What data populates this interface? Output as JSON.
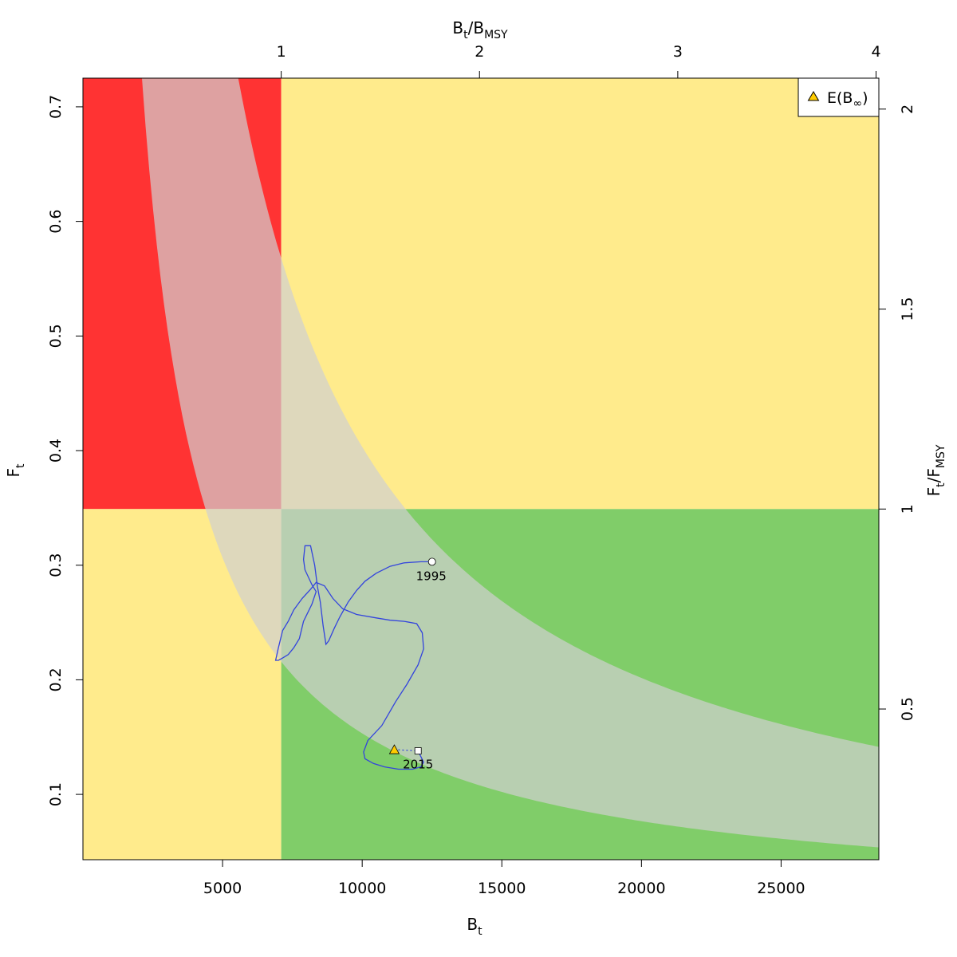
{
  "chart_data": {
    "type": "line",
    "xlabel": {
      "main": "B",
      "sub": "t"
    },
    "ylabel": {
      "main": "F",
      "sub": "t"
    },
    "x2label": {
      "main": "B",
      "sub1": "t",
      "mid": "/B",
      "sub2": "MSY"
    },
    "y2label": {
      "main": "F",
      "sub1": "t",
      "mid": "/F",
      "sub2": "MSY"
    },
    "bmsy": 7100,
    "fmsy": 0.349,
    "xlim": [
      0,
      28500
    ],
    "ylim": [
      0.043,
      0.725
    ],
    "x_ticks": [
      {
        "value": 5000,
        "label": "5000"
      },
      {
        "value": 10000,
        "label": "10000"
      },
      {
        "value": 15000,
        "label": "15000"
      },
      {
        "value": 20000,
        "label": "20000"
      },
      {
        "value": 25000,
        "label": "25000"
      }
    ],
    "y_ticks": [
      {
        "value": 0.1,
        "label": "0.1"
      },
      {
        "value": 0.2,
        "label": "0.2"
      },
      {
        "value": 0.3,
        "label": "0.3"
      },
      {
        "value": 0.4,
        "label": "0.4"
      },
      {
        "value": 0.5,
        "label": "0.5"
      },
      {
        "value": 0.6,
        "label": "0.6"
      },
      {
        "value": 0.7,
        "label": "0.7"
      }
    ],
    "x2_ticks": [
      {
        "value": 1,
        "label": "1"
      },
      {
        "value": 2,
        "label": "2"
      },
      {
        "value": 3,
        "label": "3"
      },
      {
        "value": 4,
        "label": "4"
      }
    ],
    "y2_ticks": [
      {
        "value": 0.5,
        "label": "0.5"
      },
      {
        "value": 1,
        "label": "1"
      },
      {
        "value": 1.5,
        "label": "1.5"
      },
      {
        "value": 2,
        "label": "2"
      }
    ],
    "zone_colors": {
      "red": "#ff3333",
      "yellow": "#ffeb8c",
      "green": "#80cd69",
      "msy_band": "#d0d0d0",
      "trajectory": "#3344dd",
      "e_binf": "#ffcc00"
    },
    "msy_band": {
      "lower_product": 1532,
      "upper_product": 4032
    },
    "trajectory": [
      [
        12500,
        0.303
      ],
      [
        12100,
        0.303
      ],
      [
        11500,
        0.302
      ],
      [
        11000,
        0.299
      ],
      [
        10500,
        0.293
      ],
      [
        10100,
        0.286
      ],
      [
        9800,
        0.278
      ],
      [
        9500,
        0.268
      ],
      [
        9200,
        0.255
      ],
      [
        9000,
        0.245
      ],
      [
        8800,
        0.234
      ],
      [
        8700,
        0.231
      ],
      [
        8600,
        0.247
      ],
      [
        8500,
        0.268
      ],
      [
        8400,
        0.281
      ],
      [
        8300,
        0.3
      ],
      [
        8150,
        0.317
      ],
      [
        7950,
        0.317
      ],
      [
        7900,
        0.305
      ],
      [
        7950,
        0.296
      ],
      [
        8200,
        0.283
      ],
      [
        8350,
        0.277
      ],
      [
        8200,
        0.266
      ],
      [
        7900,
        0.251
      ],
      [
        7750,
        0.236
      ],
      [
        7550,
        0.228
      ],
      [
        7350,
        0.222
      ],
      [
        7150,
        0.219
      ],
      [
        7000,
        0.217
      ],
      [
        6900,
        0.217
      ],
      [
        7000,
        0.228
      ],
      [
        7150,
        0.243
      ],
      [
        7350,
        0.251
      ],
      [
        7550,
        0.261
      ],
      [
        7850,
        0.271
      ],
      [
        8150,
        0.279
      ],
      [
        8350,
        0.285
      ],
      [
        8650,
        0.282
      ],
      [
        8950,
        0.271
      ],
      [
        9300,
        0.262
      ],
      [
        9800,
        0.257
      ],
      [
        10500,
        0.254
      ],
      [
        11000,
        0.252
      ],
      [
        11500,
        0.251
      ],
      [
        11950,
        0.249
      ],
      [
        12150,
        0.241
      ],
      [
        12200,
        0.227
      ],
      [
        12000,
        0.213
      ],
      [
        11600,
        0.196
      ],
      [
        11200,
        0.181
      ],
      [
        10700,
        0.16
      ],
      [
        10200,
        0.147
      ],
      [
        10050,
        0.137
      ],
      [
        10100,
        0.131
      ],
      [
        10400,
        0.127
      ],
      [
        10800,
        0.124
      ],
      [
        11300,
        0.122
      ],
      [
        11800,
        0.122
      ],
      [
        12100,
        0.124
      ],
      [
        12200,
        0.128
      ],
      [
        12100,
        0.133
      ],
      [
        12000,
        0.138
      ]
    ],
    "points": {
      "start": {
        "x": 12500,
        "y": 0.303,
        "label": "1995"
      },
      "end": {
        "x": 12000,
        "y": 0.138,
        "label": "2015"
      },
      "e_binf": {
        "x": 11150,
        "y": 0.139
      }
    },
    "legend": {
      "position": "top-right",
      "entries": [
        {
          "main": "E(B",
          "sub": "∞",
          "close": ")"
        }
      ]
    }
  }
}
